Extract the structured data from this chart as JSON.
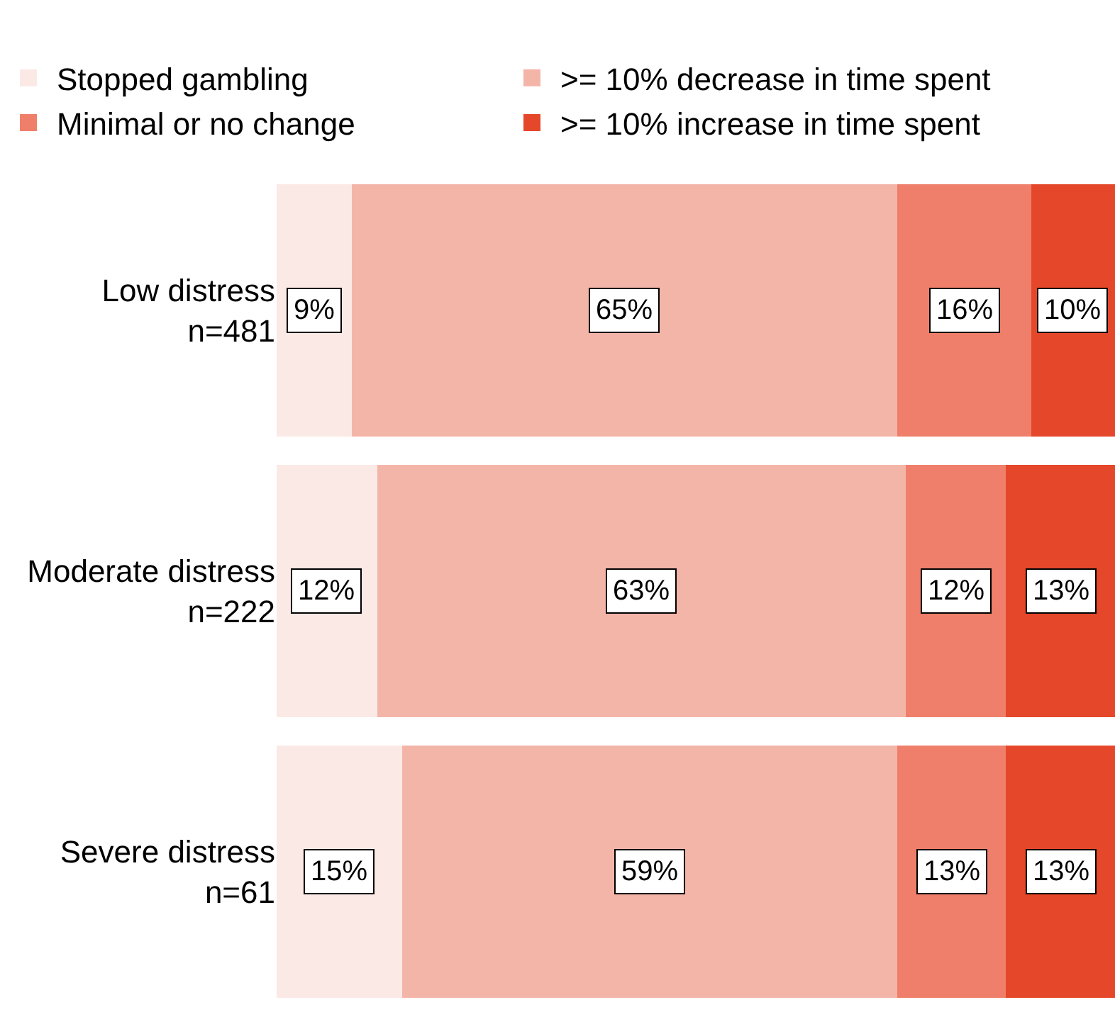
{
  "chart_data": {
    "type": "bar",
    "orientation": "horizontal",
    "stacked": true,
    "legend": "top",
    "categories": [
      "Low distress\nn=481",
      "Moderate distress\nn=222",
      "Severe distress\nn=61"
    ],
    "series": [
      {
        "name": "Stopped gambling",
        "color": "#fbe9e6",
        "values": [
          9,
          12,
          15
        ],
        "value_labels": [
          "9%",
          "12%",
          "15%"
        ]
      },
      {
        "name": ">= 10% decrease in time spent",
        "color": "#f4b5a9",
        "values": [
          65,
          63,
          59
        ],
        "value_labels": [
          "65%",
          "63%",
          "59%"
        ]
      },
      {
        "name": "Minimal or no change",
        "color": "#ef7f6a",
        "values": [
          16,
          12,
          13
        ],
        "value_labels": [
          "16%",
          "12%",
          "13%"
        ]
      },
      {
        "name": ">= 10% increase in time spent",
        "color": "#e5472a",
        "values": [
          10,
          13,
          13
        ],
        "value_labels": [
          "10%",
          "13%",
          "13%"
        ]
      }
    ]
  }
}
